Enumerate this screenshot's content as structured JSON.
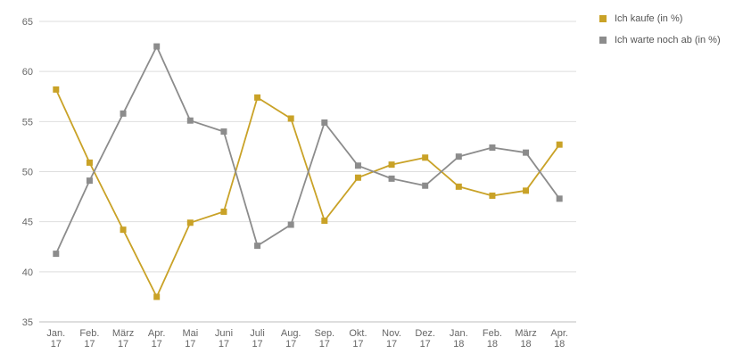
{
  "chart_data": {
    "type": "line",
    "categories": [
      [
        "Jan.",
        "17"
      ],
      [
        "Feb.",
        "17"
      ],
      [
        "März",
        "17"
      ],
      [
        "Apr.",
        "17"
      ],
      [
        "Mai",
        "17"
      ],
      [
        "Juni",
        "17"
      ],
      [
        "Juli",
        "17"
      ],
      [
        "Aug.",
        "17"
      ],
      [
        "Sep.",
        "17"
      ],
      [
        "Okt.",
        "17"
      ],
      [
        "Nov.",
        "17"
      ],
      [
        "Dez.",
        "17"
      ],
      [
        "Jan.",
        "18"
      ],
      [
        "Feb.",
        "18"
      ],
      [
        "März",
        "18"
      ],
      [
        "Apr.",
        "18"
      ]
    ],
    "series": [
      {
        "name": "Ich kaufe (in %)",
        "color": "#c9a227",
        "values": [
          58.2,
          50.9,
          44.2,
          37.5,
          44.9,
          46.0,
          57.4,
          55.3,
          45.1,
          49.4,
          50.7,
          51.4,
          48.5,
          47.6,
          48.1,
          52.7
        ]
      },
      {
        "name": "Ich warte noch ab (in %)",
        "color": "#8c8c8c",
        "values": [
          41.8,
          49.1,
          55.8,
          62.5,
          55.1,
          54.0,
          42.6,
          44.7,
          54.9,
          50.6,
          49.3,
          48.6,
          51.5,
          52.4,
          51.9,
          47.3
        ]
      }
    ],
    "yticks": [
      35,
      40,
      45,
      50,
      55,
      60,
      65
    ],
    "ylim": [
      35,
      65
    ],
    "grid": true,
    "legend_position": "top-right"
  }
}
